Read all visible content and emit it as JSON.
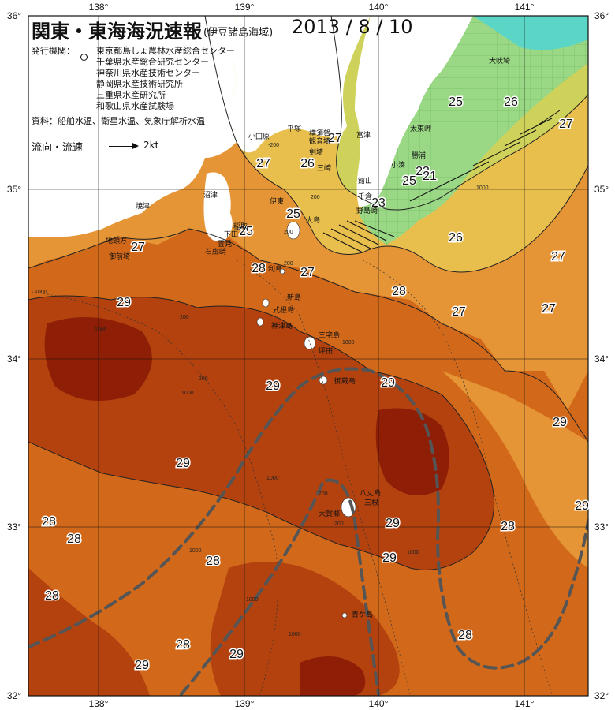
{
  "header": {
    "title": "関東・東海海況速報",
    "subtitle": "(伊豆諸島海域)",
    "date": "2013 / 8 / 10"
  },
  "institutions": {
    "label": "発行機関：",
    "items": [
      "東京都島しょ農林水産総合センター",
      "千葉県水産総合研究センター",
      "神奈川県水産技術センター",
      "静岡県水産技術研究所",
      "三重県水産研究所",
      "和歌山県水産試験場"
    ]
  },
  "source": "資料：船舶水温、衛星水温、気象庁解析水温",
  "flow_legend": {
    "label": "流向・流速",
    "value": "2kt"
  },
  "axes": {
    "lon_labels": [
      "138°",
      "139°",
      "140°",
      "141°"
    ],
    "lat_labels": [
      "36°",
      "35°",
      "34°",
      "33°",
      "32°"
    ]
  },
  "temperature_labels": [
    "26",
    "27",
    "25",
    "26",
    "27",
    "27",
    "26",
    "23",
    "25",
    "21",
    "23",
    "27",
    "25",
    "25",
    "26",
    "27",
    "28",
    "27",
    "28",
    "27",
    "29",
    "27",
    "29",
    "29",
    "29",
    "29",
    "28",
    "28",
    "29",
    "29",
    "28",
    "29",
    "28",
    "28",
    "28",
    "29",
    "28",
    "28",
    "29"
  ],
  "place_names": [
    "犬吠埼",
    "太東岬",
    "勝浦",
    "小湊",
    "館山",
    "千倉",
    "野島崎",
    "平塚",
    "横須賀",
    "観音埼",
    "富津",
    "剣埼",
    "三崎",
    "小田原",
    "伊東",
    "大島",
    "稲取",
    "下田",
    "石廊崎",
    "沼津",
    "焼津",
    "地頭方",
    "御前埼",
    "雲見",
    "利島",
    "新島",
    "式根島",
    "神津島",
    "三宅島",
    "坪田",
    "御蔵島",
    "八丈島",
    "三根",
    "大賀郷",
    "青ケ島"
  ],
  "depth_labels": [
    "-200",
    "1000",
    "200",
    "200",
    "1000",
    "1000",
    "200",
    "1000",
    "1000",
    "1000",
    "1000",
    "1000",
    "200",
    "200",
    "200",
    "1000",
    "200",
    "1000"
  ],
  "colors": {
    "warm_core": "#8e1f06",
    "warm_29": "#b4420f",
    "warm_28": "#d2691a",
    "mid_27": "#e59535",
    "temp_26": "#e8be4d",
    "temp_25": "#cfd25a",
    "cool_23": "#8fd586",
    "cool_21": "#5bd6c6",
    "land": "#ffffff",
    "kuroshio_axis": "#555555"
  }
}
